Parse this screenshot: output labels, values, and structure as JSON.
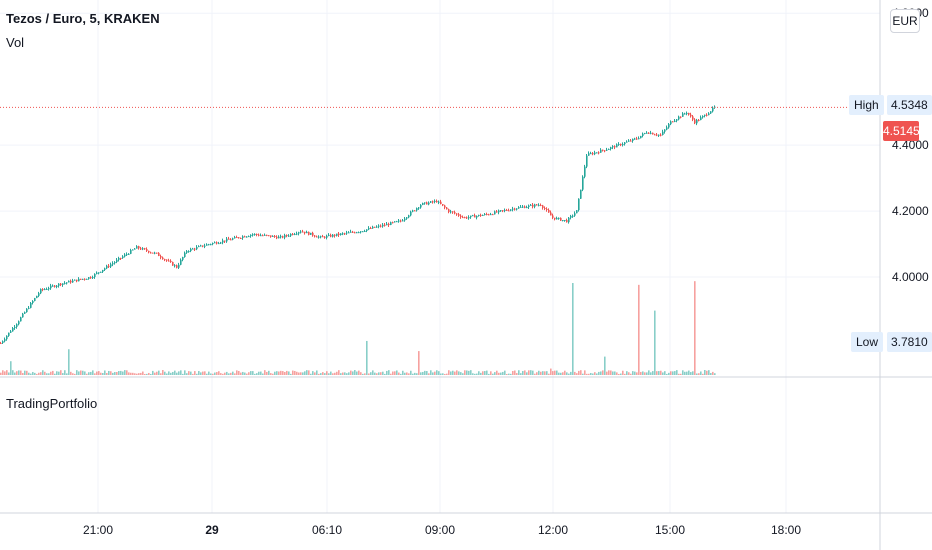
{
  "header": {
    "symbol_title": "Tezos / Euro, 5, KRAKEN",
    "volume_label": "Vol",
    "currency": "EUR"
  },
  "lower_pane": {
    "label": "TradingPortfolio"
  },
  "price_axis": {
    "ticks": [
      "4.8000",
      "4.4000",
      "4.2000",
      "4.0000"
    ],
    "high_label": "High",
    "high_value": "4.5348",
    "low_label": "Low",
    "low_value": "3.7810",
    "last_value": "4.5145"
  },
  "time_axis": {
    "ticks": [
      "21:00",
      "29",
      "06:10",
      "09:00",
      "12:00",
      "15:00",
      "18:00"
    ]
  },
  "colors": {
    "up": "#26a69a",
    "down": "#ef5350",
    "grid": "#f0f3fa",
    "axis": "#787b86"
  },
  "chart_data": {
    "type": "candlestick",
    "ylim": [
      3.7,
      4.84
    ],
    "last_price": 4.5145,
    "series": [
      {
        "name": "price",
        "keypoints": [
          [
            0,
            3.8
          ],
          [
            8,
            3.86
          ],
          [
            20,
            3.96
          ],
          [
            30,
            3.98
          ],
          [
            45,
            4.0
          ],
          [
            58,
            4.05
          ],
          [
            68,
            4.09
          ],
          [
            78,
            4.07
          ],
          [
            88,
            4.03
          ],
          [
            93,
            4.08
          ],
          [
            104,
            4.1
          ],
          [
            126,
            4.13
          ],
          [
            140,
            4.12
          ],
          [
            150,
            4.14
          ],
          [
            160,
            4.12
          ],
          [
            180,
            4.14
          ],
          [
            200,
            4.17
          ],
          [
            210,
            4.22
          ],
          [
            218,
            4.23
          ],
          [
            224,
            4.2
          ],
          [
            232,
            4.18
          ],
          [
            243,
            4.19
          ],
          [
            258,
            4.21
          ],
          [
            270,
            4.22
          ],
          [
            276,
            4.18
          ],
          [
            283,
            4.17
          ],
          [
            288,
            4.2
          ],
          [
            293,
            4.37
          ],
          [
            304,
            4.39
          ],
          [
            318,
            4.42
          ],
          [
            323,
            4.44
          ],
          [
            330,
            4.43
          ],
          [
            335,
            4.47
          ],
          [
            343,
            4.5
          ],
          [
            347,
            4.47
          ],
          [
            352,
            4.49
          ],
          [
            357,
            4.5145
          ]
        ]
      },
      {
        "name": "volume",
        "spikes": [
          [
            5,
            0.15,
            "up"
          ],
          [
            34,
            0.28,
            "up"
          ],
          [
            183,
            0.37,
            "up"
          ],
          [
            209,
            0.26,
            "down"
          ],
          [
            275,
            0.07,
            "down"
          ],
          [
            286,
            1.0,
            "up"
          ],
          [
            302,
            0.2,
            "up"
          ],
          [
            319,
            0.98,
            "down"
          ],
          [
            327,
            0.7,
            "up"
          ],
          [
            347,
            1.02,
            "down"
          ]
        ]
      }
    ]
  }
}
